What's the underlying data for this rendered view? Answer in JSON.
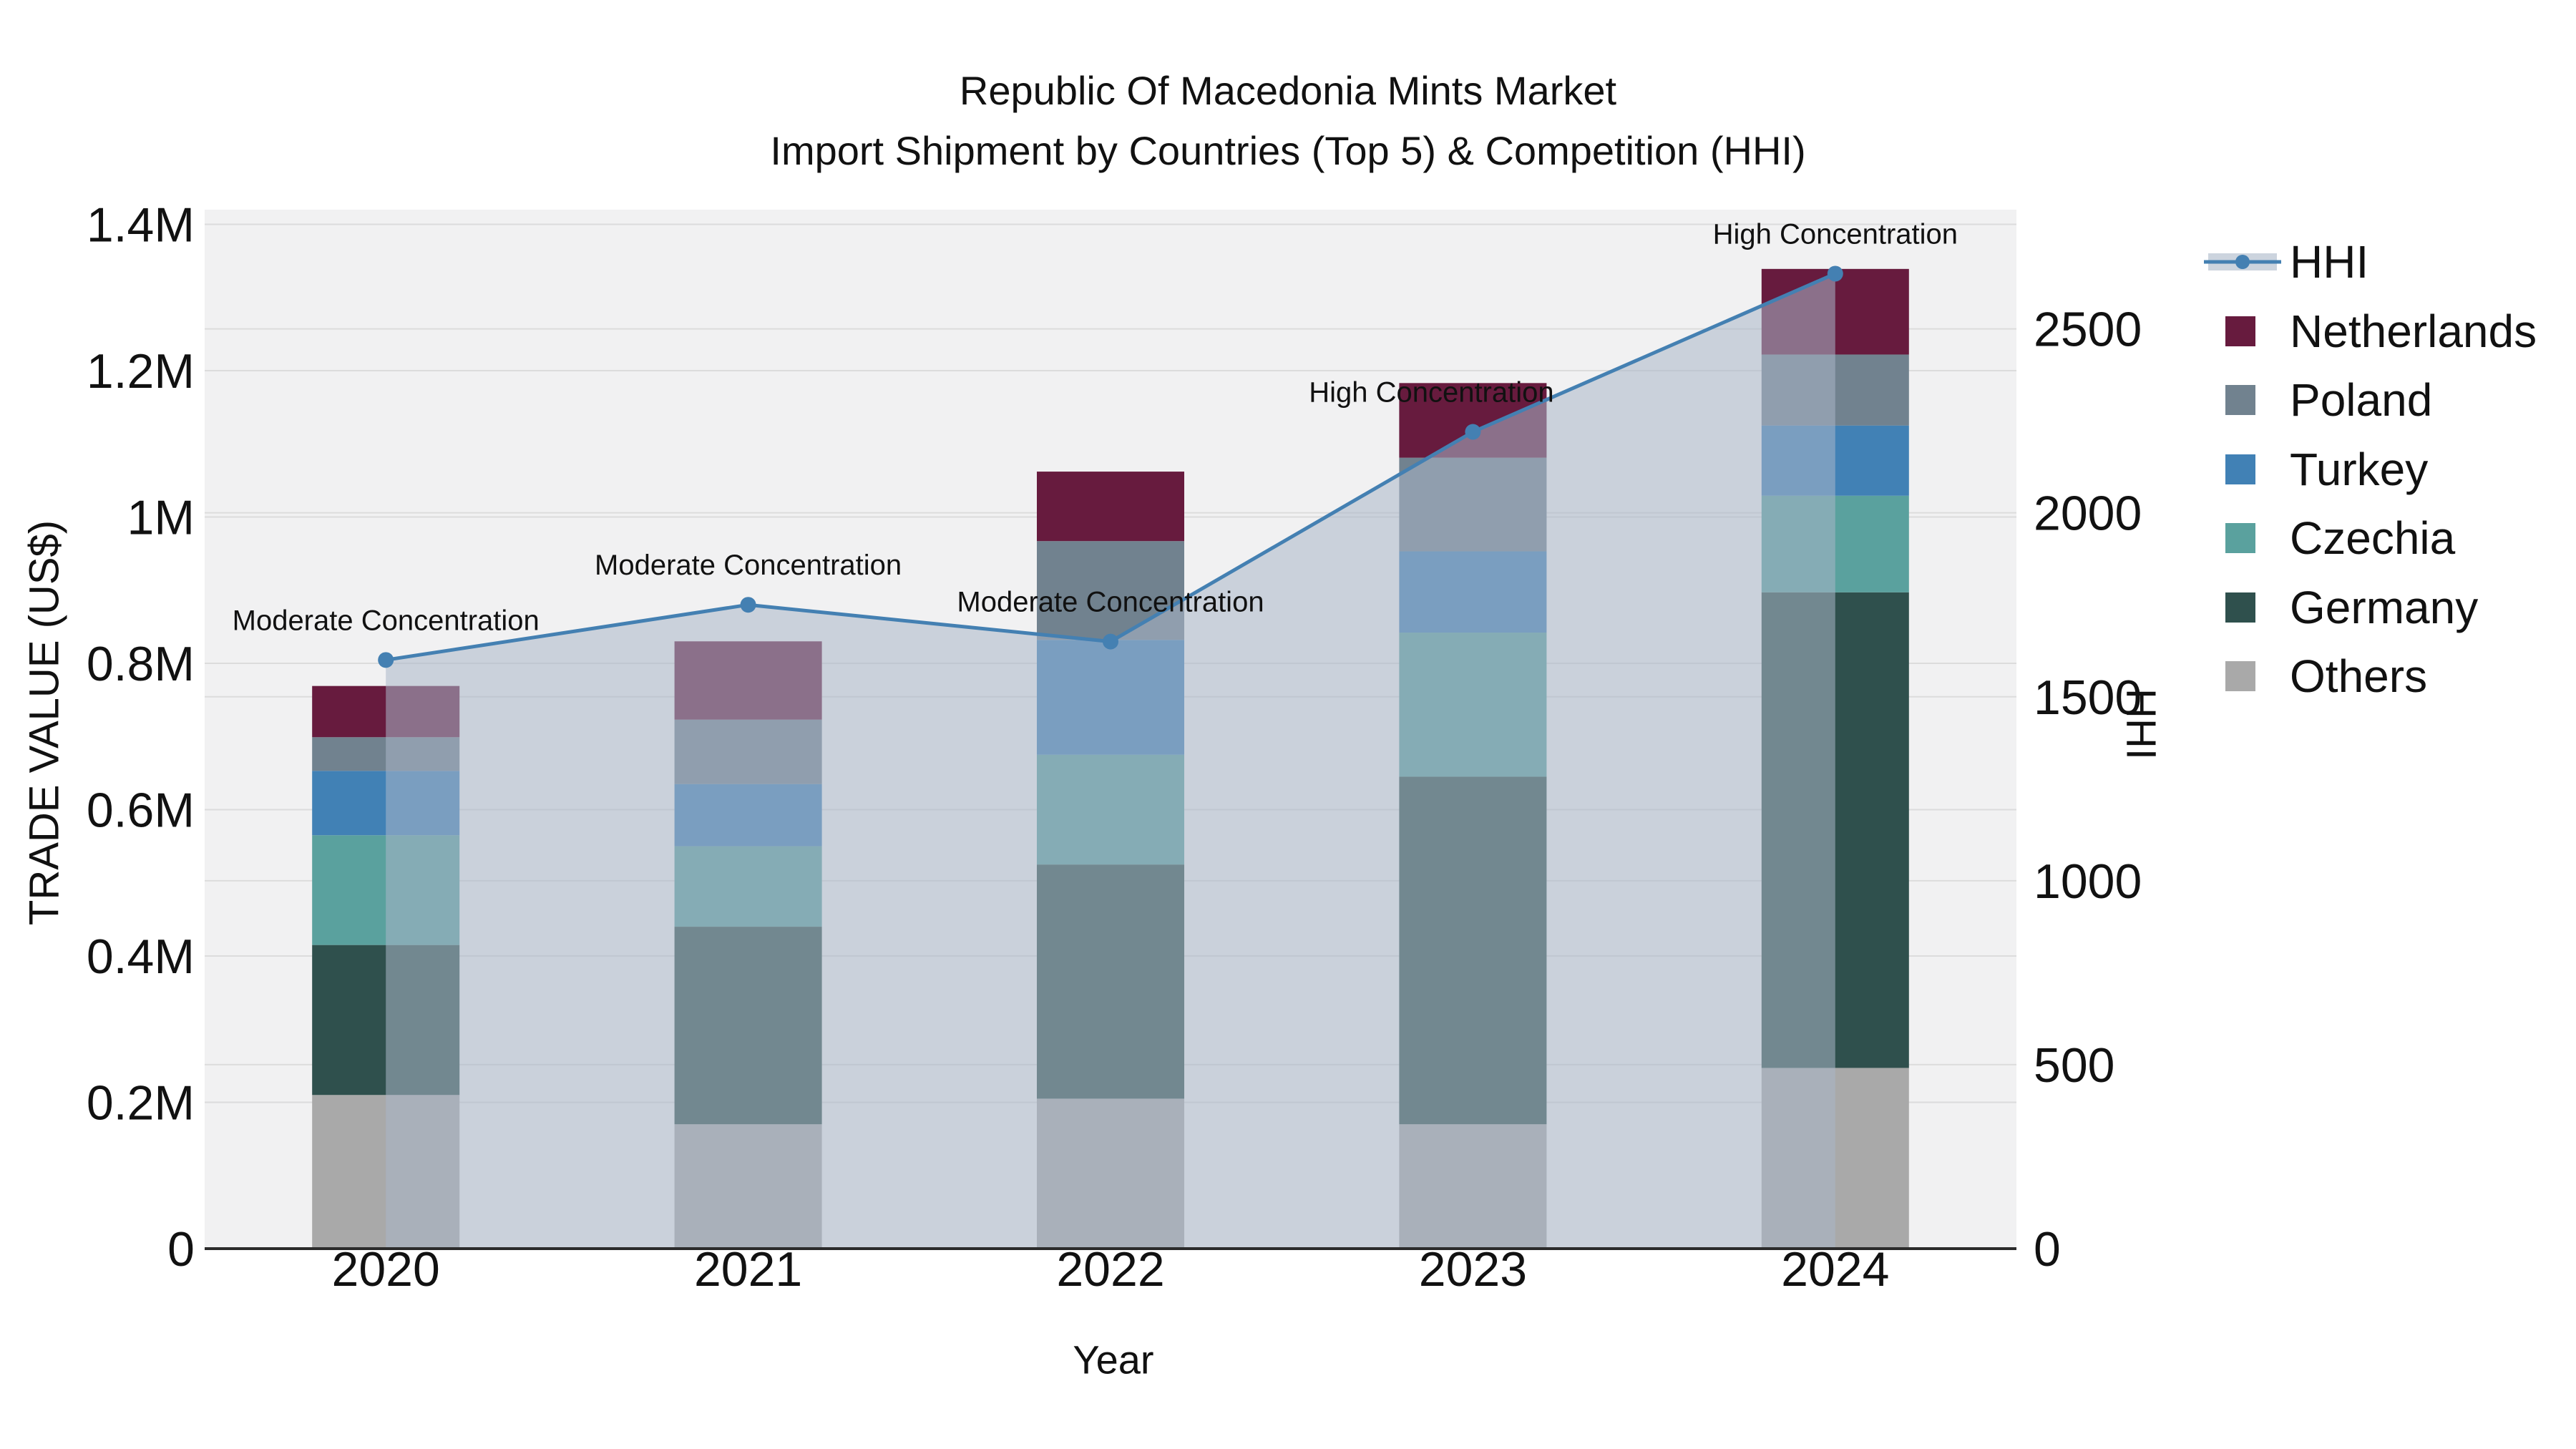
{
  "title": {
    "line1": "Republic Of Macedonia Mints Market",
    "line2": "Import Shipment by Countries (Top 5) & Competition (HHI)"
  },
  "axes": {
    "x_label": "Year",
    "y_left_label": "TRADE VALUE (US$)",
    "y_right_label": "HHI",
    "y_left_max": 1420000,
    "y_right_max": 2824,
    "y_left_ticks": [
      {
        "value": 0,
        "label": "0"
      },
      {
        "value": 200000,
        "label": "0.2M"
      },
      {
        "value": 400000,
        "label": "0.4M"
      },
      {
        "value": 600000,
        "label": "0.6M"
      },
      {
        "value": 800000,
        "label": "0.8M"
      },
      {
        "value": 1000000,
        "label": "1M"
      },
      {
        "value": 1200000,
        "label": "1.2M"
      },
      {
        "value": 1400000,
        "label": "1.4M"
      }
    ],
    "y_right_ticks": [
      {
        "value": 0,
        "label": "0"
      },
      {
        "value": 500,
        "label": "500"
      },
      {
        "value": 1000,
        "label": "1000"
      },
      {
        "value": 1500,
        "label": "1500"
      },
      {
        "value": 2000,
        "label": "2000"
      },
      {
        "value": 2500,
        "label": "2500"
      }
    ]
  },
  "chart_data": {
    "type": "bar",
    "subtype": "stacked-bars-with-hhi-line-and-area",
    "title": "Republic Of Macedonia Mints Market — Import Shipment by Countries (Top 5) & Competition (HHI)",
    "xlabel": "Year",
    "ylabel": "TRADE VALUE (US$)",
    "ylabel_right": "HHI",
    "ylim_left": [
      0,
      1420000
    ],
    "ylim_right": [
      0,
      2824
    ],
    "grid": true,
    "legend_position": "right",
    "categories": [
      "2020",
      "2021",
      "2022",
      "2023",
      "2024"
    ],
    "series": [
      {
        "name": "Others",
        "color": "#a9a9a9",
        "values": [
          210000,
          170000,
          205000,
          170000,
          247000
        ]
      },
      {
        "name": "Germany",
        "color": "#2f504d",
        "values": [
          205000,
          270000,
          320000,
          475000,
          650000
        ]
      },
      {
        "name": "Czechia",
        "color": "#5aa19e",
        "values": [
          150000,
          110000,
          150000,
          197000,
          132000
        ]
      },
      {
        "name": "Turkey",
        "color": "#4181b5",
        "values": [
          88000,
          85000,
          157000,
          111000,
          96000
        ]
      },
      {
        "name": "Poland",
        "color": "#71828f",
        "values": [
          46000,
          88000,
          135000,
          128000,
          97000
        ]
      },
      {
        "name": "Netherlands",
        "color": "#671b3e",
        "values": [
          70000,
          107000,
          95000,
          102000,
          117000
        ]
      }
    ],
    "bar_totals": [
      769000,
      830000,
      1062000,
      1183000,
      1339000
    ],
    "line_series": {
      "name": "HHI",
      "axis": "right",
      "color": "#4480b2",
      "area_color": "#aab6c8",
      "area_opacity": 0.55,
      "values": [
        1600,
        1750,
        1650,
        2220,
        2650
      ]
    },
    "annotations": [
      {
        "category": "2020",
        "text": "Moderate Concentration",
        "dx": 0
      },
      {
        "category": "2021",
        "text": "Moderate Concentration",
        "dx": 0
      },
      {
        "category": "2022",
        "text": "Moderate Concentration",
        "dx": 0
      },
      {
        "category": "2023",
        "text": "High Concentration",
        "dx": -58
      },
      {
        "category": "2024",
        "text": "High Concentration",
        "dx": 0
      }
    ]
  },
  "legend": {
    "items": [
      {
        "label": "HHI",
        "type": "line",
        "color": "#4480b2",
        "band_color": "#ccd4de"
      },
      {
        "label": "Netherlands",
        "type": "swatch",
        "color": "#671b3e"
      },
      {
        "label": "Poland",
        "type": "swatch",
        "color": "#71828f"
      },
      {
        "label": "Turkey",
        "type": "swatch",
        "color": "#4181b5"
      },
      {
        "label": "Czechia",
        "type": "swatch",
        "color": "#5aa19e"
      },
      {
        "label": "Germany",
        "type": "swatch",
        "color": "#2f504d"
      },
      {
        "label": "Others",
        "type": "swatch",
        "color": "#a9a9a9"
      }
    ]
  },
  "style_colors": {
    "plot_background": "#f1f1f2",
    "gridline": "#dcdcdc",
    "axis_line": "#2b2b2b",
    "text": "#111111"
  }
}
